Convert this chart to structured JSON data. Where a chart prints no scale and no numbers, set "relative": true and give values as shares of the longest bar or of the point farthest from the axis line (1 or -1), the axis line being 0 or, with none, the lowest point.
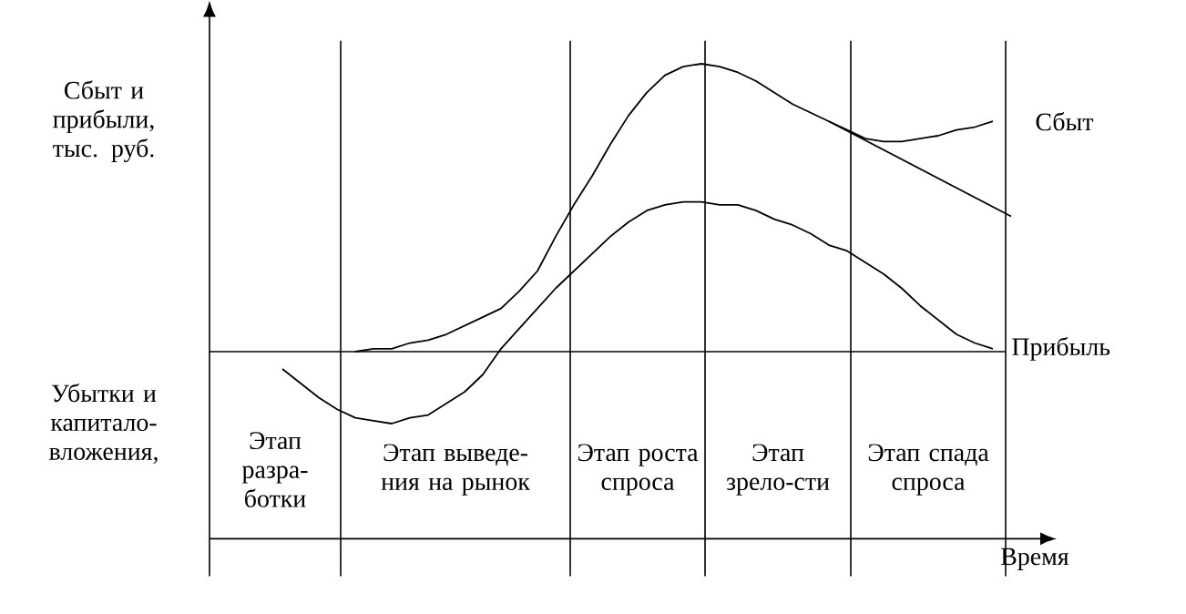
{
  "chart_data": {
    "type": "line",
    "relative": true,
    "ylabel": "Сбыт и прибыли, тыс. руб.",
    "xlabel": "Время",
    "annotations": [
      "Убытки и капитало-вложения,",
      "Этап разра-ботки",
      "Этап выведе-ния на рынок",
      "Этап роста спроса",
      "Этап зрело-сти",
      "Этап спада спроса"
    ],
    "categories": [
      null,
      null,
      null,
      null,
      null,
      null,
      null,
      null,
      null,
      null,
      null,
      null,
      null,
      null,
      null,
      null,
      null,
      null,
      null,
      null,
      null,
      null,
      null,
      null,
      null,
      null,
      null,
      null,
      null,
      null,
      null,
      null,
      null,
      null,
      null,
      null,
      null,
      null,
      null,
      null,
      null,
      null,
      null,
      null,
      null
    ],
    "series": [
      {
        "name": "Сбыт",
        "color": "#000000",
        "values": [
          null,
          null,
          null,
          null,
          null,
          null,
          null,
          null,
          0,
          0.01,
          0.01,
          0.03,
          0.04,
          0.06,
          0.09,
          0.12,
          0.15,
          0.21,
          0.28,
          0.4,
          0.51,
          0.61,
          0.72,
          0.82,
          0.9,
          0.96,
          0.99,
          1.0,
          0.99,
          0.97,
          0.94,
          0.9,
          0.86,
          0.83,
          0.8,
          0.77,
          0.74,
          0.73,
          0.73,
          0.74,
          0.75,
          0.77,
          0.78,
          0.8,
          null
        ]
      },
      {
        "color": "#000000",
        "values": [
          null,
          null,
          null,
          null,
          null,
          null,
          null,
          null,
          null,
          null,
          null,
          null,
          null,
          null,
          null,
          null,
          null,
          null,
          null,
          null,
          null,
          null,
          null,
          null,
          null,
          null,
          null,
          null,
          null,
          null,
          null,
          null,
          null,
          null,
          0.8,
          null,
          null,
          null,
          null,
          null,
          null,
          null,
          null,
          null,
          0.47
        ]
      },
      {
        "name": "Прибыль",
        "color": "#000000",
        "values": [
          null,
          null,
          null,
          null,
          -0.06,
          -0.11,
          -0.16,
          -0.2,
          -0.23,
          -0.24,
          -0.25,
          -0.23,
          -0.22,
          -0.18,
          -0.14,
          -0.08,
          0.01,
          0.08,
          0.15,
          0.22,
          0.28,
          0.34,
          0.4,
          0.45,
          0.49,
          0.51,
          0.52,
          0.52,
          0.51,
          0.51,
          0.49,
          0.46,
          0.44,
          0.41,
          0.37,
          0.35,
          0.31,
          0.27,
          0.22,
          0.16,
          0.11,
          0.06,
          0.03,
          0.01,
          null
        ]
      }
    ]
  }
}
